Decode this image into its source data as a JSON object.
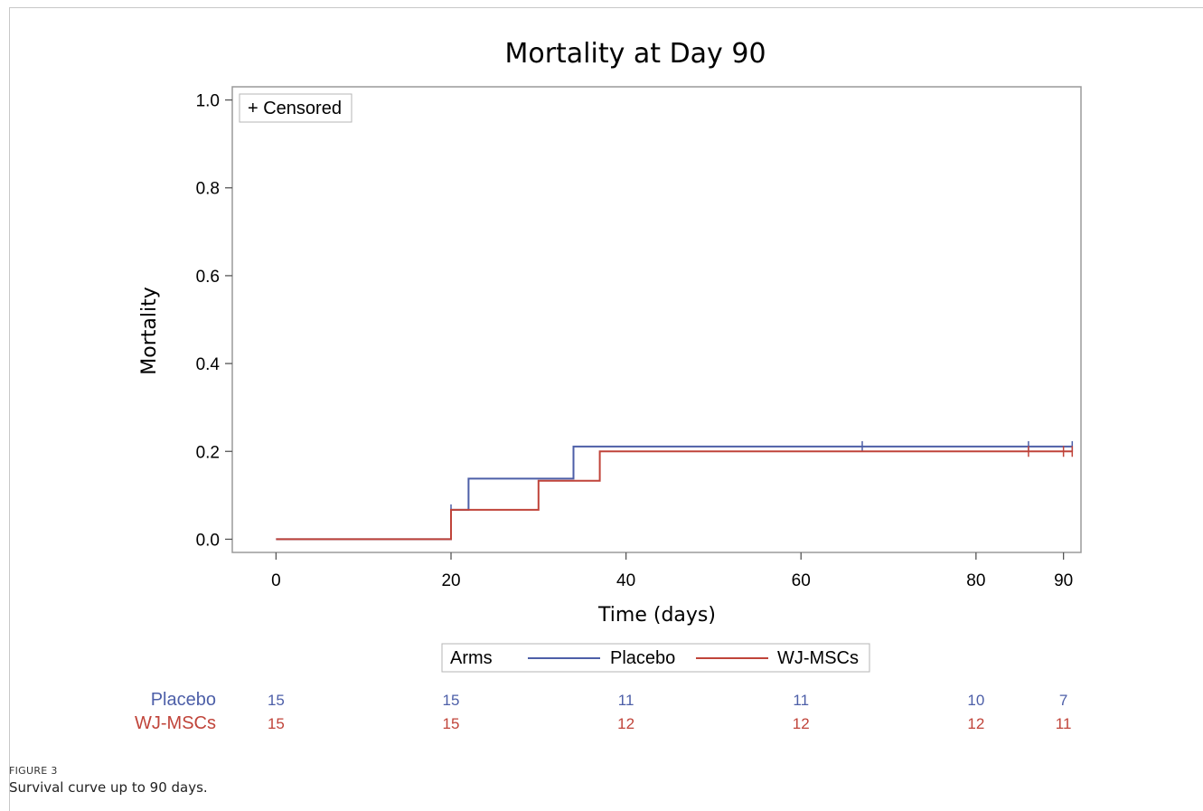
{
  "figure": {
    "label": "FIGURE 3",
    "caption": "Survival curve up to 90 days."
  },
  "chart_data": {
    "type": "line",
    "subtype": "kaplan-meier-step",
    "title": "Mortality at Day 90",
    "xlabel": "Time (days)",
    "ylabel": "Mortality",
    "xlim": [
      -5,
      92
    ],
    "ylim": [
      -0.03,
      1.03
    ],
    "xticks": [
      0,
      20,
      40,
      60,
      80,
      90
    ],
    "yticks": [
      0.0,
      0.2,
      0.4,
      0.6,
      0.8,
      1.0
    ],
    "ytick_labels": [
      "0.0",
      "0.2",
      "0.4",
      "0.6",
      "0.8",
      "1.0"
    ],
    "grid": false,
    "censored_legend": "+ Censored",
    "legend": {
      "title": "Arms",
      "placement": "bottom"
    },
    "colors": {
      "Placebo": "#4d5fa8",
      "WJ-MSCs": "#c0443a"
    },
    "series": [
      {
        "name": "Placebo",
        "steps": [
          [
            0,
            0.0
          ],
          [
            20,
            0.0
          ],
          [
            20,
            0.067
          ],
          [
            22,
            0.067
          ],
          [
            22,
            0.138
          ],
          [
            34,
            0.138
          ],
          [
            34,
            0.211
          ],
          [
            91,
            0.211
          ]
        ],
        "censored": [
          [
            20,
            0.067
          ],
          [
            67,
            0.211
          ],
          [
            86,
            0.211
          ],
          [
            91,
            0.211
          ]
        ]
      },
      {
        "name": "WJ-MSCs",
        "steps": [
          [
            0,
            0.0
          ],
          [
            20,
            0.0
          ],
          [
            20,
            0.067
          ],
          [
            30,
            0.067
          ],
          [
            30,
            0.133
          ],
          [
            37,
            0.133
          ],
          [
            37,
            0.2
          ],
          [
            91,
            0.2
          ]
        ],
        "censored": [
          [
            86,
            0.2
          ],
          [
            90,
            0.2
          ],
          [
            91,
            0.2
          ]
        ]
      }
    ],
    "at_risk": {
      "times": [
        0,
        20,
        40,
        60,
        80,
        90
      ],
      "rows": [
        {
          "name": "Placebo",
          "values": [
            "15",
            "15",
            "11",
            "11",
            "10",
            "7"
          ]
        },
        {
          "name": "WJ-MSCs",
          "values": [
            "15",
            "15",
            "12",
            "12",
            "12",
            "11"
          ]
        }
      ]
    }
  }
}
